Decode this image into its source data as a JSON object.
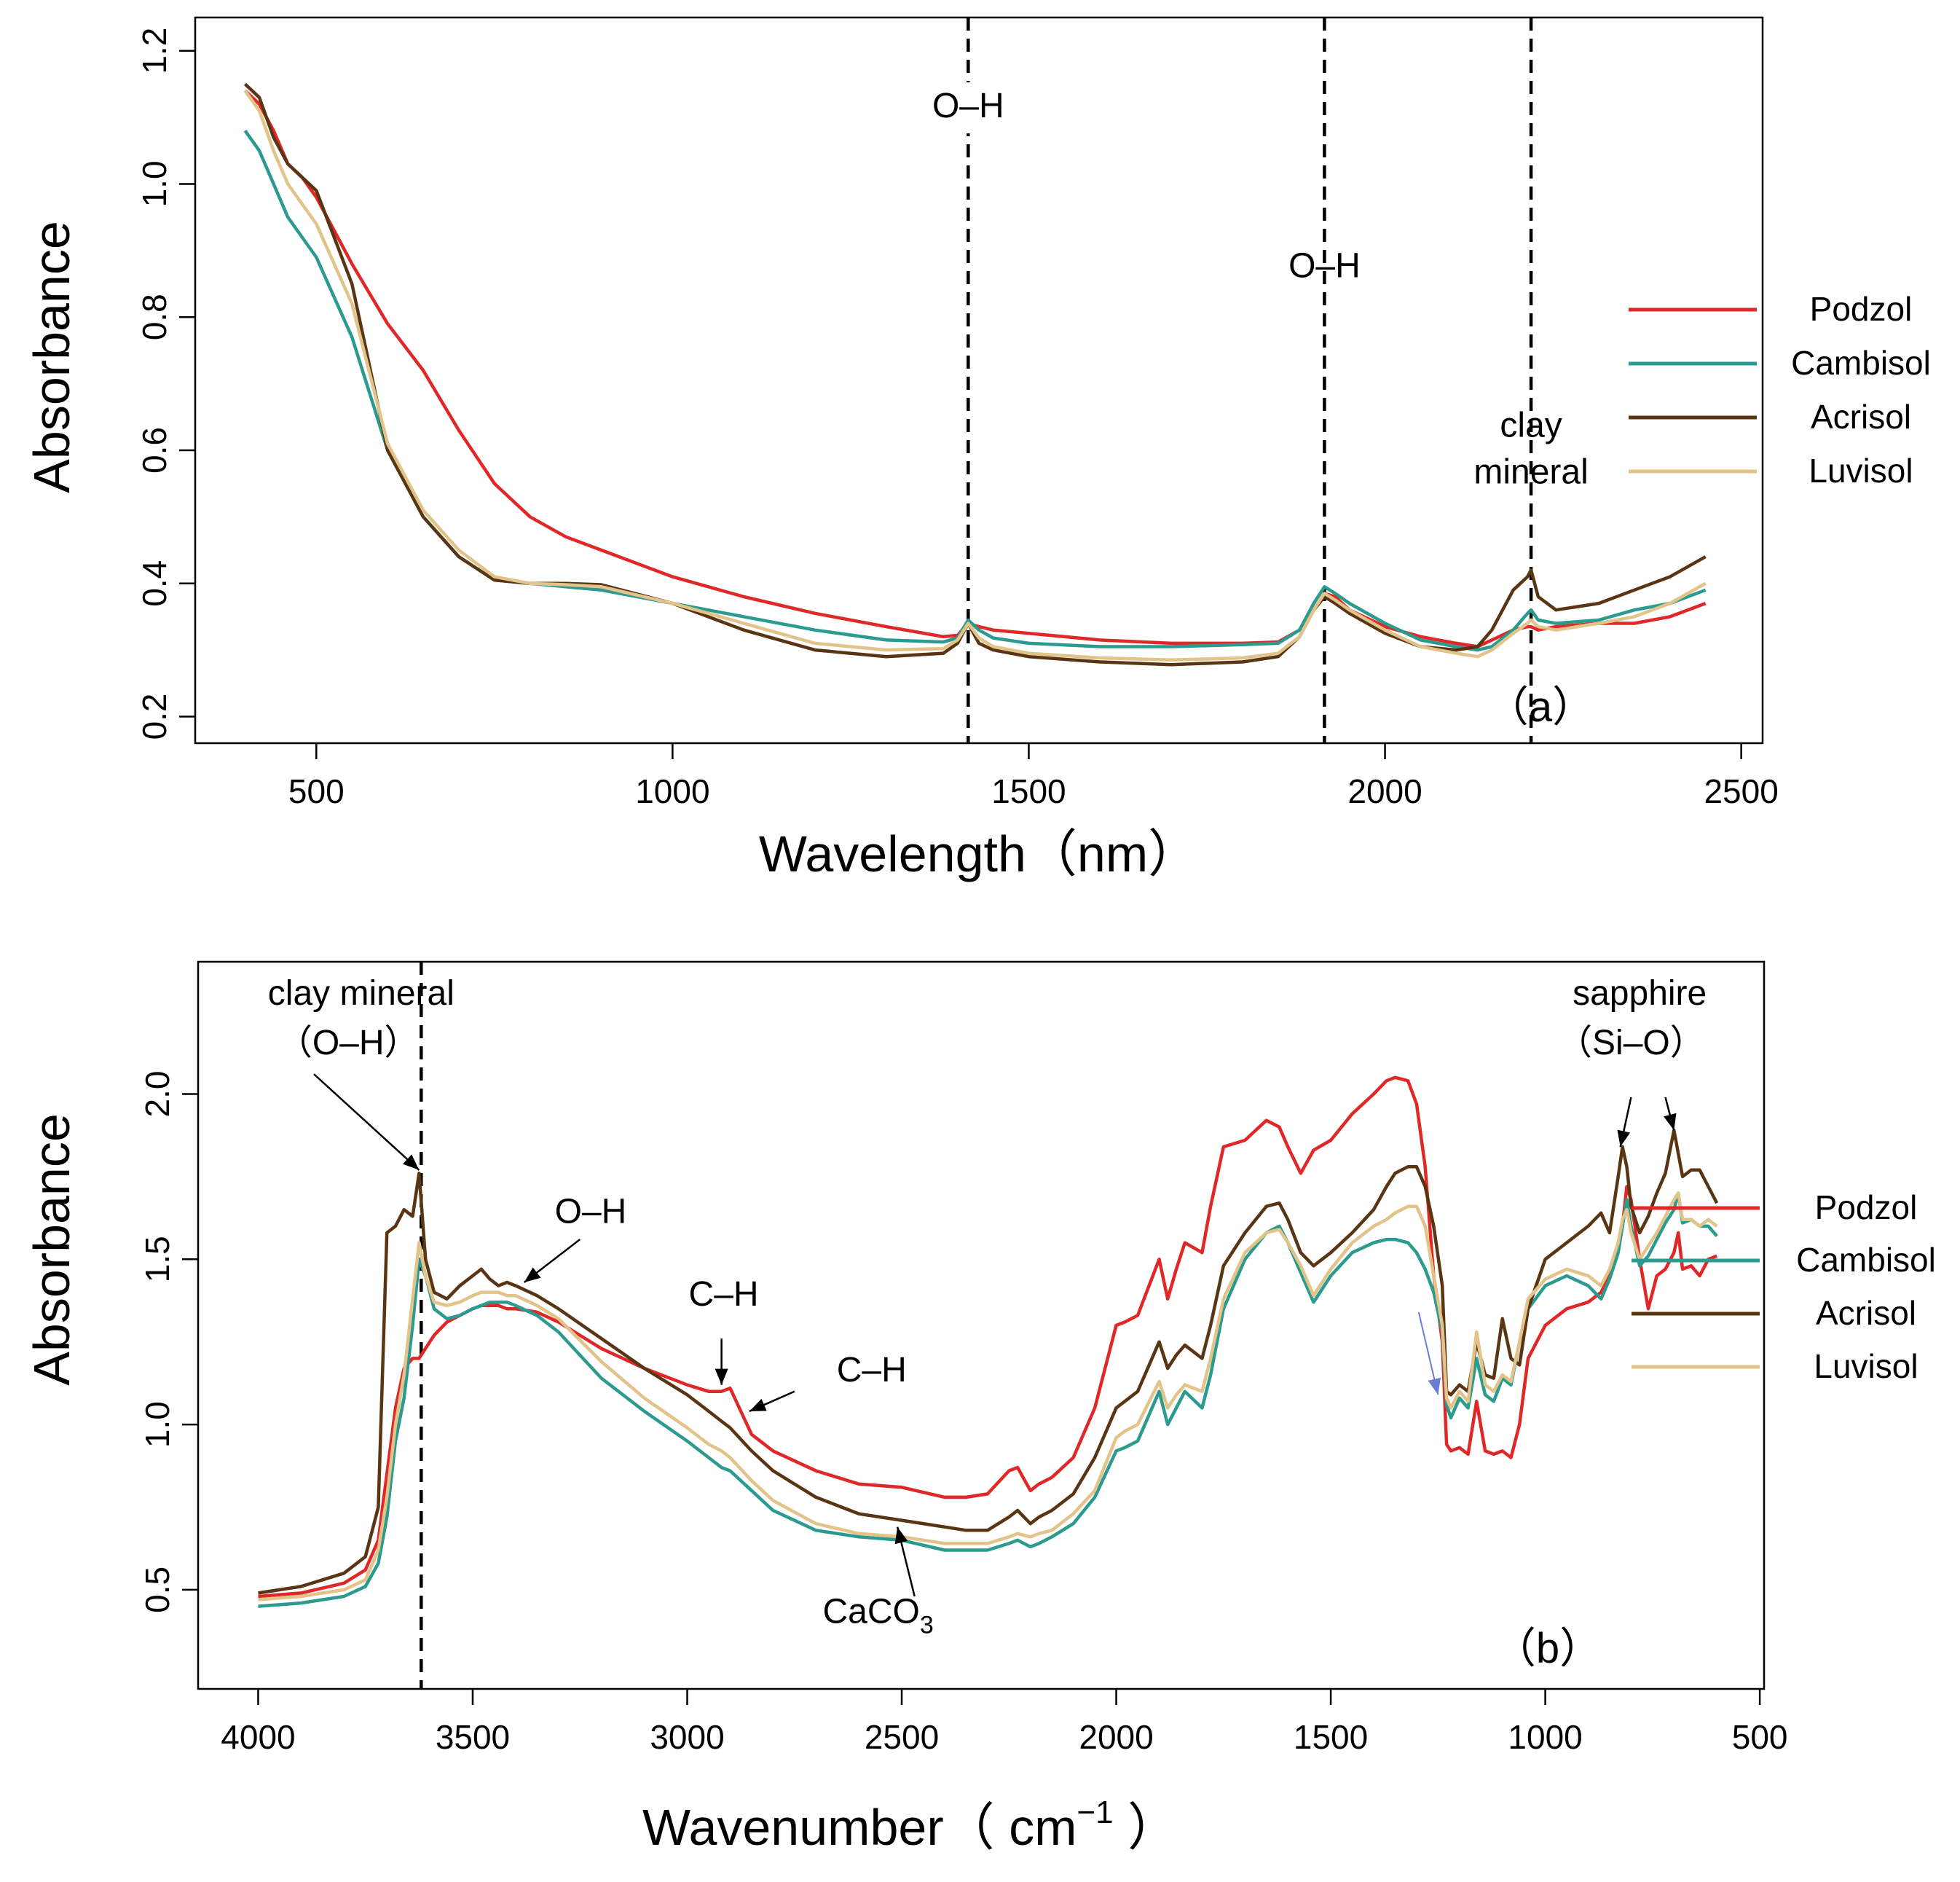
{
  "colors": {
    "Podzol": "#e02828",
    "Cambisol": "#2b9a8f",
    "Acrisol": "#5a3514",
    "Luvisol": "#e2c48a"
  },
  "legend": [
    {
      "name": "Podzol",
      "color": "#e02828"
    },
    {
      "name": "Cambisol",
      "color": "#2b9a8f"
    },
    {
      "name": "Acrisol",
      "color": "#5a3514"
    },
    {
      "name": "Luvisol",
      "color": "#e2c48a"
    }
  ],
  "chart_data": [
    {
      "type": "line",
      "panel_label": "（a）",
      "xlabel": "Wavelength（nm）",
      "ylabel": "Absorbance",
      "xlim": [
        330,
        2530
      ],
      "ylim": [
        0.16,
        1.25
      ],
      "xticks": [
        500,
        1000,
        1500,
        2000,
        2500
      ],
      "xtick_labels": [
        "500",
        "1000",
        "1500",
        "2000",
        "2500"
      ],
      "yticks": [
        0.2,
        0.4,
        0.6,
        0.8,
        1.0,
        1.2
      ],
      "ytick_labels": [
        "0.2",
        "0.4",
        "0.6",
        "0.8",
        "1.0",
        "1.2"
      ],
      "vlines": [
        1415,
        1915,
        2205
      ],
      "annotations": [
        {
          "text": "O–H",
          "x": 1415,
          "y": 1.1
        },
        {
          "text": "O–H",
          "x": 1915,
          "y": 0.86
        },
        {
          "text": "clay",
          "x": 2205,
          "y": 0.62
        },
        {
          "text": "mineral",
          "x": 2205,
          "y": 0.55
        }
      ],
      "x": [
        400,
        420,
        440,
        460,
        480,
        500,
        550,
        600,
        650,
        700,
        750,
        800,
        850,
        900,
        1000,
        1100,
        1200,
        1300,
        1380,
        1400,
        1415,
        1430,
        1450,
        1500,
        1600,
        1700,
        1800,
        1850,
        1880,
        1900,
        1915,
        1930,
        1950,
        2000,
        2050,
        2100,
        2130,
        2150,
        2180,
        2200,
        2205,
        2215,
        2240,
        2300,
        2350,
        2400,
        2450
      ],
      "series": [
        {
          "name": "Podzol",
          "values": [
            1.14,
            1.12,
            1.08,
            1.03,
            1.01,
            0.98,
            0.88,
            0.79,
            0.72,
            0.63,
            0.55,
            0.5,
            0.47,
            0.45,
            0.41,
            0.38,
            0.355,
            0.335,
            0.32,
            0.322,
            0.34,
            0.335,
            0.33,
            0.325,
            0.315,
            0.31,
            0.31,
            0.312,
            0.33,
            0.36,
            0.385,
            0.38,
            0.36,
            0.335,
            0.32,
            0.31,
            0.305,
            0.315,
            0.33,
            0.335,
            0.335,
            0.33,
            0.335,
            0.34,
            0.34,
            0.35,
            0.37
          ]
        },
        {
          "name": "Cambisol",
          "values": [
            1.08,
            1.05,
            1.0,
            0.95,
            0.92,
            0.89,
            0.77,
            0.6,
            0.5,
            0.44,
            0.405,
            0.4,
            0.395,
            0.39,
            0.37,
            0.35,
            0.33,
            0.315,
            0.312,
            0.318,
            0.345,
            0.33,
            0.318,
            0.31,
            0.305,
            0.305,
            0.308,
            0.31,
            0.33,
            0.37,
            0.395,
            0.385,
            0.37,
            0.34,
            0.315,
            0.305,
            0.3,
            0.305,
            0.33,
            0.355,
            0.36,
            0.345,
            0.34,
            0.345,
            0.36,
            0.37,
            0.39
          ]
        },
        {
          "name": "Acrisol",
          "values": [
            1.15,
            1.13,
            1.07,
            1.03,
            1.01,
            0.99,
            0.85,
            0.6,
            0.5,
            0.44,
            0.405,
            0.4,
            0.4,
            0.398,
            0.37,
            0.33,
            0.3,
            0.29,
            0.295,
            0.31,
            0.34,
            0.31,
            0.3,
            0.29,
            0.282,
            0.278,
            0.282,
            0.29,
            0.32,
            0.36,
            0.38,
            0.37,
            0.355,
            0.325,
            0.305,
            0.3,
            0.305,
            0.33,
            0.39,
            0.41,
            0.42,
            0.38,
            0.36,
            0.37,
            0.39,
            0.41,
            0.44
          ]
        },
        {
          "name": "Luvisol",
          "values": [
            1.14,
            1.11,
            1.05,
            1.0,
            0.97,
            0.94,
            0.82,
            0.61,
            0.51,
            0.45,
            0.41,
            0.4,
            0.398,
            0.395,
            0.37,
            0.34,
            0.31,
            0.3,
            0.302,
            0.315,
            0.34,
            0.318,
            0.305,
            0.295,
            0.288,
            0.285,
            0.288,
            0.295,
            0.32,
            0.36,
            0.385,
            0.375,
            0.36,
            0.33,
            0.305,
            0.295,
            0.29,
            0.3,
            0.325,
            0.34,
            0.345,
            0.335,
            0.33,
            0.34,
            0.35,
            0.37,
            0.4
          ]
        }
      ]
    },
    {
      "type": "line",
      "panel_label": "（b）",
      "xlabel": "Wavenumber（ cm",
      "xlabel_sup": "−1",
      "xlabel_end": " ）",
      "ylabel": "Absorbance",
      "xlim": [
        4140,
        490
      ],
      "ylim": [
        0.2,
        2.4
      ],
      "xticks": [
        4000,
        3500,
        3000,
        2500,
        2000,
        1500,
        1000,
        500
      ],
      "xtick_labels": [
        "4000",
        "3500",
        "3000",
        "2500",
        "2000",
        "1500",
        "1000",
        "500"
      ],
      "yticks": [
        0.5,
        1.0,
        1.5,
        2.0
      ],
      "ytick_labels": [
        "0.5",
        "1.0",
        "1.5",
        "2.0"
      ],
      "vlines": [
        3620
      ],
      "annotations": [
        {
          "text": "clay mineral",
          "x": 3760,
          "y": 2.27
        },
        {
          "text": "（O–H）",
          "x": 3790,
          "y": 2.12
        },
        {
          "text": "O–H",
          "x": 3225,
          "y": 1.61
        },
        {
          "text": "C–H",
          "x": 2915,
          "y": 1.36
        },
        {
          "text": "C–H",
          "x": 2570,
          "y": 1.13
        },
        {
          "text": "CaCO",
          "x": 2555,
          "y": 0.4
        },
        {
          "text": "sapphire",
          "x": 780,
          "y": 2.27
        },
        {
          "text": "（Si–O）",
          "x": 800,
          "y": 2.12
        }
      ],
      "annotation_sub": "3",
      "arrows": [
        {
          "from": [
            3870,
            2.06
          ],
          "to": [
            3625,
            1.77
          ]
        },
        {
          "from": [
            3250,
            1.56
          ],
          "to": [
            3380,
            1.43
          ]
        },
        {
          "from": [
            2920,
            1.26
          ],
          "to": [
            2920,
            1.12
          ]
        },
        {
          "from": [
            2750,
            1.1
          ],
          "to": [
            2855,
            1.04
          ]
        },
        {
          "from": [
            2470,
            0.48
          ],
          "to": [
            2510,
            0.69
          ]
        },
        {
          "from": [
            800,
            1.99
          ],
          "to": [
            825,
            1.84
          ]
        },
        {
          "from": [
            720,
            1.99
          ],
          "to": [
            700,
            1.89
          ]
        },
        {
          "from": [
            1295,
            1.34
          ],
          "to": [
            1250,
            1.09
          ]
        }
      ],
      "x": [
        4000,
        3900,
        3800,
        3750,
        3720,
        3700,
        3680,
        3660,
        3640,
        3625,
        3610,
        3590,
        3560,
        3530,
        3500,
        3480,
        3460,
        3440,
        3420,
        3400,
        3350,
        3300,
        3200,
        3100,
        3000,
        2950,
        2920,
        2900,
        2850,
        2800,
        2700,
        2600,
        2500,
        2400,
        2350,
        2300,
        2250,
        2230,
        2200,
        2180,
        2150,
        2100,
        2050,
        2000,
        1980,
        1950,
        1900,
        1880,
        1860,
        1840,
        1800,
        1780,
        1750,
        1700,
        1650,
        1620,
        1600,
        1570,
        1540,
        1500,
        1450,
        1400,
        1370,
        1350,
        1320,
        1300,
        1280,
        1260,
        1240,
        1230,
        1220,
        1200,
        1180,
        1160,
        1140,
        1120,
        1100,
        1080,
        1060,
        1040,
        1000,
        950,
        900,
        870,
        850,
        830,
        820,
        810,
        800,
        780,
        760,
        740,
        720,
        700,
        690,
        680,
        660,
        640,
        620,
        600
      ],
      "series": [
        {
          "name": "Podzol",
          "values": [
            0.48,
            0.49,
            0.52,
            0.56,
            0.65,
            0.85,
            1.05,
            1.17,
            1.2,
            1.2,
            1.23,
            1.27,
            1.31,
            1.33,
            1.35,
            1.36,
            1.36,
            1.36,
            1.35,
            1.35,
            1.34,
            1.31,
            1.23,
            1.17,
            1.12,
            1.1,
            1.1,
            1.11,
            0.97,
            0.92,
            0.86,
            0.82,
            0.81,
            0.78,
            0.78,
            0.79,
            0.86,
            0.87,
            0.8,
            0.82,
            0.84,
            0.9,
            1.05,
            1.3,
            1.31,
            1.33,
            1.5,
            1.38,
            1.47,
            1.55,
            1.52,
            1.66,
            1.84,
            1.86,
            1.92,
            1.9,
            1.84,
            1.76,
            1.83,
            1.86,
            1.94,
            2.0,
            2.04,
            2.05,
            2.04,
            1.97,
            1.78,
            1.45,
            1.25,
            0.94,
            0.92,
            0.93,
            0.91,
            1.07,
            0.92,
            0.91,
            0.92,
            0.9,
            1.0,
            1.2,
            1.3,
            1.35,
            1.37,
            1.4,
            1.45,
            1.55,
            1.6,
            1.72,
            1.68,
            1.5,
            1.35,
            1.45,
            1.47,
            1.52,
            1.58,
            1.47,
            1.48,
            1.45,
            1.5,
            1.51
          ]
        },
        {
          "name": "Cambisol",
          "values": [
            0.45,
            0.46,
            0.48,
            0.51,
            0.58,
            0.72,
            0.95,
            1.08,
            1.3,
            1.5,
            1.45,
            1.35,
            1.32,
            1.33,
            1.35,
            1.36,
            1.37,
            1.37,
            1.37,
            1.36,
            1.33,
            1.28,
            1.14,
            1.04,
            0.95,
            0.9,
            0.87,
            0.86,
            0.8,
            0.74,
            0.68,
            0.66,
            0.65,
            0.62,
            0.62,
            0.62,
            0.64,
            0.65,
            0.63,
            0.64,
            0.66,
            0.7,
            0.78,
            0.92,
            0.93,
            0.95,
            1.1,
            1.0,
            1.05,
            1.1,
            1.05,
            1.15,
            1.35,
            1.5,
            1.58,
            1.6,
            1.55,
            1.46,
            1.37,
            1.45,
            1.52,
            1.55,
            1.56,
            1.56,
            1.55,
            1.52,
            1.47,
            1.4,
            1.28,
            1.06,
            1.02,
            1.08,
            1.05,
            1.2,
            1.09,
            1.07,
            1.14,
            1.12,
            1.25,
            1.35,
            1.42,
            1.45,
            1.42,
            1.38,
            1.44,
            1.52,
            1.6,
            1.68,
            1.6,
            1.48,
            1.51,
            1.56,
            1.61,
            1.65,
            1.7,
            1.61,
            1.62,
            1.6,
            1.6,
            1.57
          ]
        },
        {
          "name": "Acrisol",
          "values": [
            0.49,
            0.51,
            0.55,
            0.6,
            0.75,
            1.58,
            1.6,
            1.65,
            1.63,
            1.76,
            1.5,
            1.4,
            1.38,
            1.42,
            1.45,
            1.47,
            1.44,
            1.42,
            1.43,
            1.42,
            1.39,
            1.35,
            1.26,
            1.17,
            1.09,
            1.04,
            1.01,
            0.99,
            0.92,
            0.86,
            0.78,
            0.73,
            0.71,
            0.69,
            0.68,
            0.68,
            0.72,
            0.74,
            0.7,
            0.72,
            0.74,
            0.79,
            0.9,
            1.05,
            1.07,
            1.1,
            1.25,
            1.17,
            1.21,
            1.24,
            1.2,
            1.3,
            1.48,
            1.58,
            1.66,
            1.67,
            1.62,
            1.52,
            1.48,
            1.52,
            1.58,
            1.65,
            1.72,
            1.76,
            1.78,
            1.78,
            1.72,
            1.6,
            1.42,
            1.1,
            1.09,
            1.12,
            1.1,
            1.25,
            1.15,
            1.14,
            1.32,
            1.2,
            1.18,
            1.35,
            1.5,
            1.55,
            1.6,
            1.64,
            1.58,
            1.75,
            1.84,
            1.78,
            1.66,
            1.58,
            1.63,
            1.7,
            1.76,
            1.89,
            1.82,
            1.75,
            1.77,
            1.77,
            1.72,
            1.67
          ]
        },
        {
          "name": "Luvisol",
          "values": [
            0.47,
            0.48,
            0.5,
            0.53,
            0.62,
            0.78,
            1.0,
            1.15,
            1.38,
            1.55,
            1.45,
            1.37,
            1.36,
            1.37,
            1.39,
            1.4,
            1.4,
            1.4,
            1.39,
            1.39,
            1.36,
            1.32,
            1.19,
            1.08,
            0.99,
            0.94,
            0.92,
            0.9,
            0.83,
            0.77,
            0.7,
            0.67,
            0.66,
            0.64,
            0.64,
            0.64,
            0.66,
            0.67,
            0.66,
            0.67,
            0.68,
            0.73,
            0.8,
            0.96,
            0.98,
            1.0,
            1.13,
            1.05,
            1.09,
            1.12,
            1.1,
            1.2,
            1.38,
            1.52,
            1.58,
            1.59,
            1.55,
            1.48,
            1.39,
            1.47,
            1.55,
            1.6,
            1.62,
            1.64,
            1.66,
            1.66,
            1.6,
            1.45,
            1.3,
            1.08,
            1.05,
            1.1,
            1.07,
            1.28,
            1.12,
            1.1,
            1.15,
            1.13,
            1.25,
            1.38,
            1.44,
            1.47,
            1.45,
            1.42,
            1.47,
            1.55,
            1.62,
            1.65,
            1.58,
            1.5,
            1.54,
            1.58,
            1.63,
            1.68,
            1.7,
            1.62,
            1.62,
            1.6,
            1.62,
            1.6
          ]
        }
      ]
    }
  ]
}
